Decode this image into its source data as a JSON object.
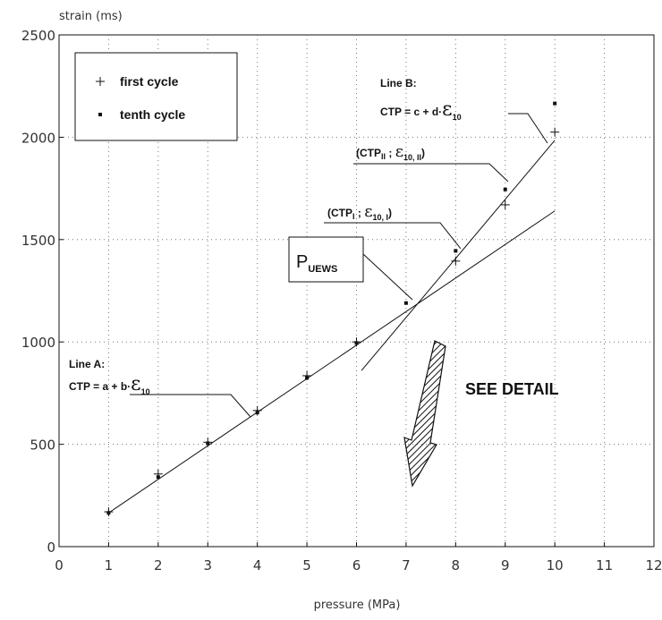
{
  "chart_data": {
    "type": "scatter",
    "ylabel": "strain (ms)",
    "xlabel": "pressure (MPa)",
    "xlim": [
      0,
      12
    ],
    "ylim": [
      0,
      2500
    ],
    "xticks": [
      "0",
      "1",
      "2",
      "3",
      "4",
      "5",
      "6",
      "7",
      "8",
      "9",
      "10",
      "11",
      "12"
    ],
    "yticks": [
      "0",
      "500",
      "1000",
      "1500",
      "2000",
      "2500"
    ],
    "grid": true,
    "legend_position": "top-left",
    "series": [
      {
        "name": "first cycle",
        "marker": "plus",
        "x": [
          1,
          2,
          3,
          4,
          5,
          6,
          8,
          9,
          10
        ],
        "y": [
          170,
          355,
          510,
          665,
          835,
          1000,
          1395,
          1670,
          2025
        ]
      },
      {
        "name": "tenth cycle",
        "marker": "square",
        "x": [
          1,
          2,
          3,
          4,
          5,
          6,
          7,
          8,
          9,
          10
        ],
        "y": [
          165,
          340,
          505,
          655,
          825,
          995,
          1190,
          1445,
          1745,
          2165
        ]
      }
    ],
    "lines": [
      {
        "x": [
          1,
          10
        ],
        "y": [
          165,
          1640
        ]
      },
      {
        "x": [
          6.1,
          10
        ],
        "y": [
          860,
          1985
        ]
      }
    ],
    "annotations": {
      "line_a_title": "Line A:",
      "line_a_ctp": "CTP",
      "line_a_eq": " = a + b·",
      "line_b_title": "Line B:",
      "line_b_ctp": "CTP",
      "line_b_eq": " = c + d·",
      "eps": "ε",
      "eps_sub": "10",
      "ctp_ii_open": "(CTP",
      "ctp_ii_sub": "II",
      "ctp_ii_sep": " ; ",
      "ctp_ii_eps_sub": "10, II",
      "ctp_ii_close": ")",
      "ctp_i_open": "(CTP",
      "ctp_i_sub": "I",
      "ctp_i_sep": " ; ",
      "ctp_i_eps_sub": "10, I",
      "ctp_i_close": ")",
      "puews_p": "P",
      "puews_sub": "UEWS",
      "see_detail": "SEE  DETAIL"
    }
  }
}
